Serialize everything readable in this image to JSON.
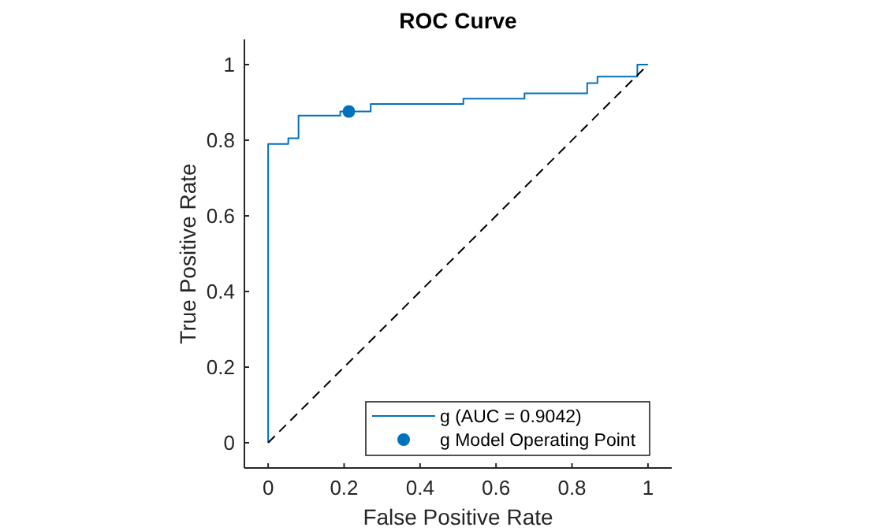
{
  "chart_data": {
    "type": "line",
    "title": "ROC Curve",
    "xlabel": "False Positive Rate",
    "ylabel": "True Positive Rate",
    "xlim": [
      -0.0625,
      1.0625
    ],
    "ylim": [
      -0.0667,
      1.0667
    ],
    "xticks": [
      0,
      0.2,
      0.4,
      0.6,
      0.8,
      1
    ],
    "yticks": [
      0,
      0.2,
      0.4,
      0.6,
      0.8,
      1
    ],
    "grid": false,
    "legend": "bottom right",
    "series": [
      {
        "name": "g (AUC = 0.9042)",
        "type": "step",
        "color": "#0072bd",
        "line_style": "solid",
        "marker": "none",
        "x": [
          0,
          0,
          0.053,
          0.08,
          0.19,
          0.27,
          0.514,
          0.675,
          0.84,
          0.867,
          0.972,
          1
        ],
        "values": [
          0,
          0.79,
          0.805,
          0.865,
          0.876,
          0.896,
          0.91,
          0.924,
          0.951,
          0.968,
          1,
          1
        ]
      },
      {
        "type": "line",
        "color": "#000000",
        "line_style": "dashed",
        "marker": "none",
        "x": [
          0,
          1
        ],
        "values": [
          0,
          1
        ]
      },
      {
        "name": "g Model Operating Point",
        "type": "scatter",
        "color": "#0072bd",
        "marker": "circle",
        "x": [
          0.2125
        ],
        "values": [
          0.876
        ]
      }
    ]
  }
}
